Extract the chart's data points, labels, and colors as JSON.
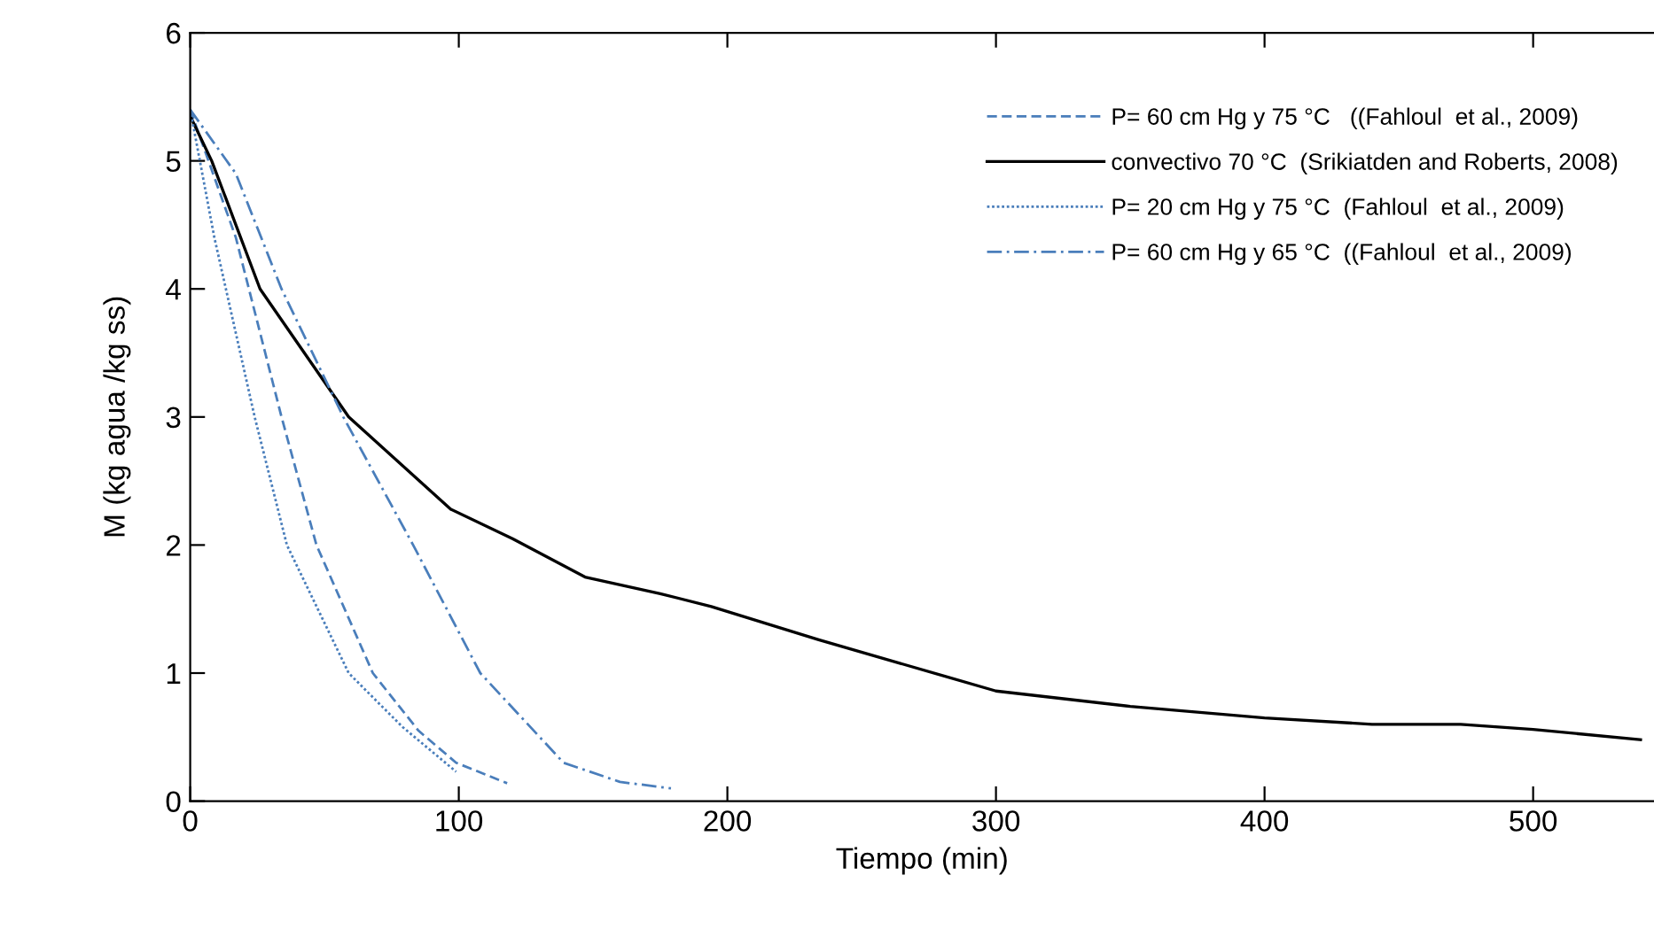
{
  "chart_data": {
    "type": "line",
    "xlabel": "Tiempo (min)",
    "ylabel": "M (kg agua /kg ss)",
    "xlim": [
      0,
      545
    ],
    "ylim": [
      0,
      6
    ],
    "xticks": [
      0,
      100,
      200,
      300,
      400,
      500
    ],
    "yticks": [
      0,
      1,
      2,
      3,
      4,
      5,
      6
    ],
    "grid": false,
    "legend": "top right",
    "marker": "none",
    "series": [
      {
        "name": "P= 60 cm Hg y 75 °C   ((Fahloul  et al., 2009)",
        "color": "#4a7ebb",
        "line_style": "dashed",
        "x": [
          0,
          17,
          34,
          47,
          68,
          85,
          99,
          118
        ],
        "values": [
          5.4,
          4.4,
          3.0,
          2.0,
          1.0,
          0.55,
          0.3,
          0.14
        ]
      },
      {
        "name": "convectivo 70 °C  (Srikiatden and Roberts, 2008)",
        "color": "#000000",
        "line_style": "solid",
        "x": [
          0,
          8,
          26,
          59,
          97,
          120,
          147,
          175,
          194,
          234,
          300,
          350,
          400,
          440,
          473,
          500,
          540
        ],
        "values": [
          5.35,
          5.0,
          4.0,
          3.0,
          2.28,
          2.05,
          1.75,
          1.62,
          1.52,
          1.26,
          0.86,
          0.74,
          0.65,
          0.6,
          0.6,
          0.56,
          0.48
        ]
      },
      {
        "name": "P= 20 cm Hg y 75 °C  (Fahloul  et al., 2009)",
        "color": "#4a7ebb",
        "line_style": "dotted",
        "x": [
          0,
          9,
          24,
          36,
          59,
          79,
          99
        ],
        "values": [
          5.4,
          4.4,
          3.0,
          2.0,
          1.0,
          0.58,
          0.23
        ]
      },
      {
        "name": "P= 60 cm Hg y 65 °C  ((Fahloul  et al., 2009)",
        "color": "#4a7ebb",
        "line_style": "dashdot",
        "x": [
          0,
          17,
          34,
          57,
          83,
          108,
          139,
          160,
          179
        ],
        "values": [
          5.4,
          4.9,
          4.0,
          3.0,
          2.0,
          1.0,
          0.3,
          0.15,
          0.1
        ]
      }
    ]
  }
}
